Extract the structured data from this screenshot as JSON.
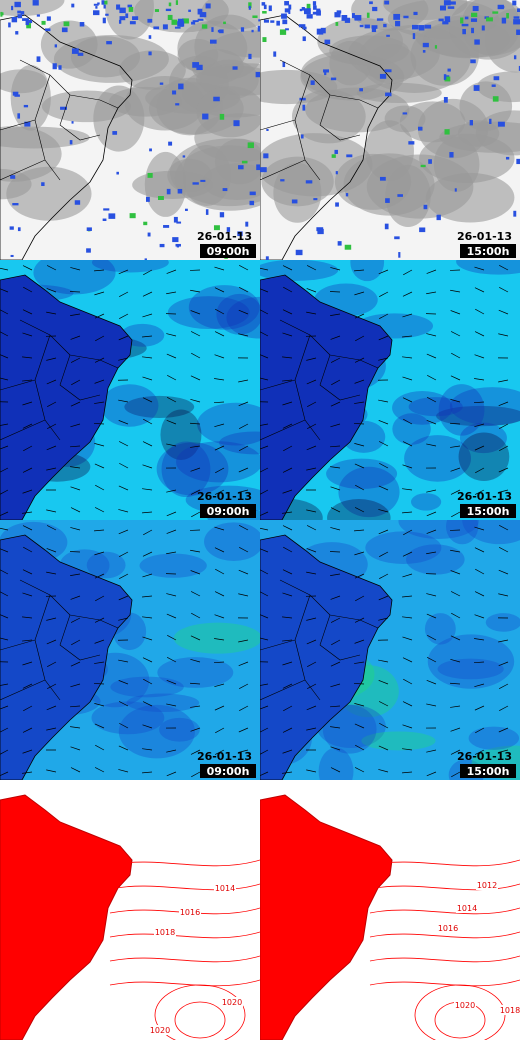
{
  "panels": [
    {
      "kind": "satellite",
      "date": "26-01-13",
      "time": "09:00h"
    },
    {
      "kind": "satellite",
      "date": "26-01-13",
      "time": "15:00h"
    },
    {
      "kind": "wind-low",
      "date": "26-01-13",
      "time": "09:00h"
    },
    {
      "kind": "wind-low",
      "date": "26-01-13",
      "time": "15:00h"
    },
    {
      "kind": "wind-high",
      "date": "26-01-13",
      "time": "09:00h"
    },
    {
      "kind": "wind-high",
      "date": "26-01-13",
      "time": "15:00h"
    },
    {
      "kind": "pressure",
      "contour_labels": [
        "1014",
        "1016",
        "1018",
        "1020",
        "1020"
      ]
    },
    {
      "kind": "pressure",
      "contour_labels": [
        "1012",
        "1014",
        "1016",
        "1020",
        "1018"
      ]
    }
  ]
}
